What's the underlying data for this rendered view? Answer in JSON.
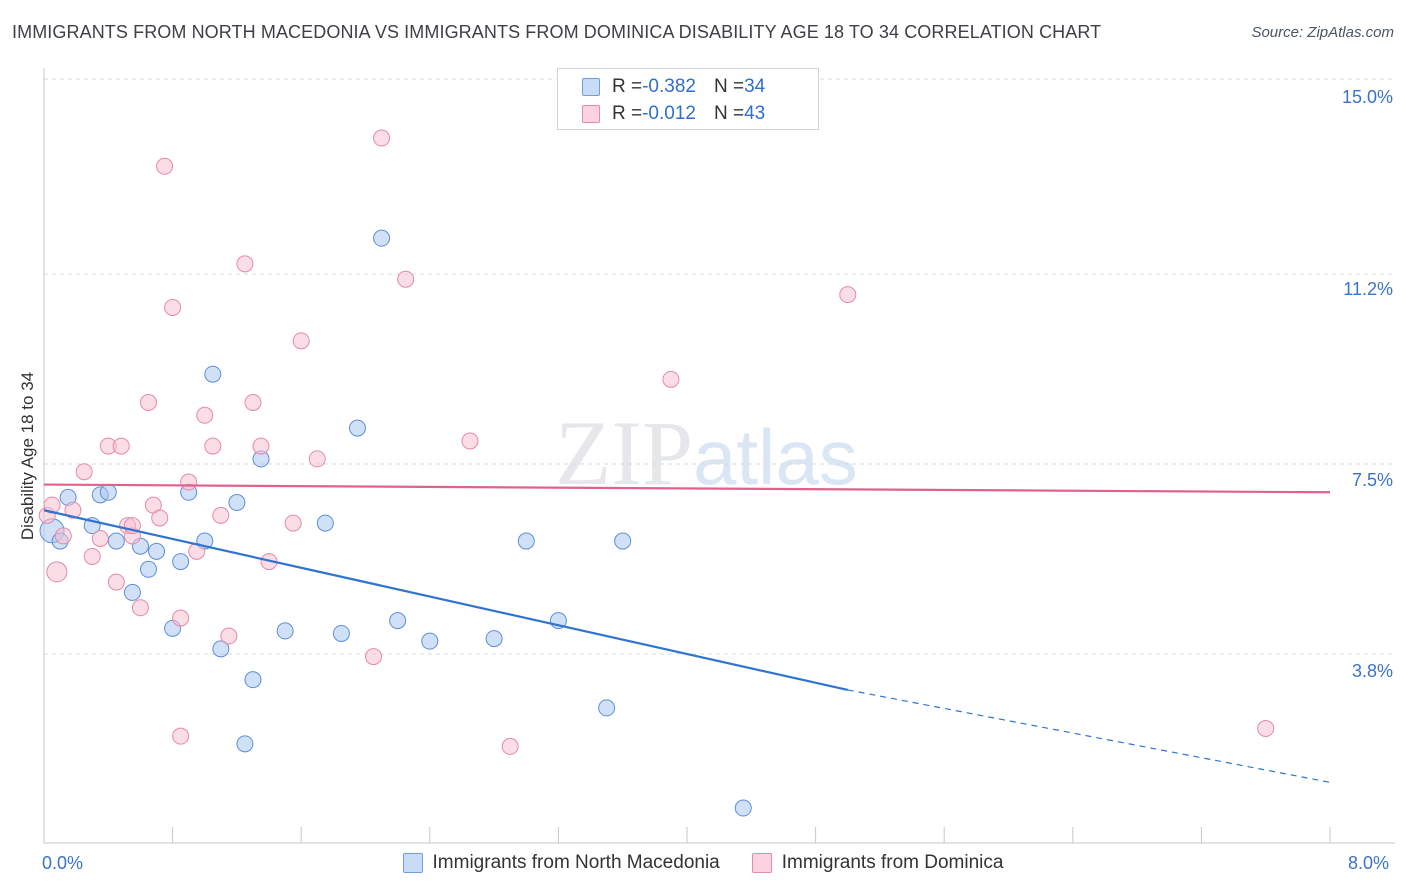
{
  "title": "IMMIGRANTS FROM NORTH MACEDONIA VS IMMIGRANTS FROM DOMINICA DISABILITY AGE 18 TO 34 CORRELATION CHART",
  "source": "Source: ZipAtlas.com",
  "watermark": {
    "zip": "ZIP",
    "atlas": "atlas"
  },
  "legend": {
    "rows": [
      {
        "r_label": "R = ",
        "r_value": "-0.382",
        "n_label": "N = ",
        "n_value": "34",
        "color": "#a9c7ee",
        "border": "#6fa0dc"
      },
      {
        "r_label": "R = ",
        "r_value": "-0.012",
        "n_label": "N = ",
        "n_value": "43",
        "color": "#f7c1d2",
        "border": "#e58aa7"
      }
    ]
  },
  "chart_data": {
    "type": "scatter",
    "title": "IMMIGRANTS FROM NORTH MACEDONIA VS IMMIGRANTS FROM DOMINICA DISABILITY AGE 18 TO 34 CORRELATION CHART",
    "xlabel": "",
    "ylabel": "Disability Age 18 to 34",
    "xlim": [
      0,
      8
    ],
    "ylim": [
      0.3,
      15.6
    ],
    "x_tick_labels": [
      "0.0%",
      "8.0%"
    ],
    "y_ticks": [
      3.8,
      7.5,
      11.2,
      15.0
    ],
    "y_tick_labels": [
      "3.8%",
      "7.5%",
      "11.2%",
      "15.0%"
    ],
    "grid": true,
    "series": [
      {
        "name": "Immigrants from North Macedonia",
        "color": "#a9c7ee",
        "edge": "#5d8fd6",
        "line_color": "#2f74d0",
        "trend": {
          "x0": 0.0,
          "y0": 6.6,
          "x1": 5.0,
          "y1": 3.1,
          "dash_to_x": 8.0,
          "dash_to_y": 1.3
        },
        "points": [
          [
            0.05,
            6.2
          ],
          [
            0.1,
            6.0
          ],
          [
            0.15,
            6.85
          ],
          [
            0.35,
            6.9
          ],
          [
            0.4,
            6.95
          ],
          [
            0.3,
            6.3
          ],
          [
            0.45,
            6.0
          ],
          [
            0.6,
            5.9
          ],
          [
            0.55,
            5.0
          ],
          [
            0.65,
            5.45
          ],
          [
            0.7,
            5.8
          ],
          [
            0.8,
            4.3
          ],
          [
            0.85,
            5.6
          ],
          [
            0.9,
            6.95
          ],
          [
            1.0,
            6.0
          ],
          [
            1.05,
            9.25
          ],
          [
            1.1,
            3.9
          ],
          [
            1.2,
            6.75
          ],
          [
            1.3,
            3.3
          ],
          [
            1.35,
            7.6
          ],
          [
            1.5,
            4.25
          ],
          [
            1.75,
            6.35
          ],
          [
            1.85,
            4.2
          ],
          [
            1.95,
            8.2
          ],
          [
            2.1,
            11.9
          ],
          [
            2.2,
            4.45
          ],
          [
            2.4,
            4.05
          ],
          [
            2.8,
            4.1
          ],
          [
            3.0,
            6.0
          ],
          [
            3.2,
            4.45
          ],
          [
            3.5,
            2.75
          ],
          [
            3.6,
            6.0
          ],
          [
            4.35,
            0.8
          ],
          [
            1.25,
            2.05
          ]
        ]
      },
      {
        "name": "Immigrants from Dominica",
        "color": "#f7c1d2",
        "edge": "#e58aa7",
        "line_color": "#e0628c",
        "trend": {
          "x0": 0.0,
          "y0": 7.1,
          "x1": 8.0,
          "y1": 6.95
        },
        "points": [
          [
            0.02,
            6.5
          ],
          [
            0.05,
            6.7
          ],
          [
            0.08,
            5.4
          ],
          [
            0.12,
            6.1
          ],
          [
            0.18,
            6.6
          ],
          [
            0.25,
            7.35
          ],
          [
            0.3,
            5.7
          ],
          [
            0.35,
            6.05
          ],
          [
            0.4,
            7.85
          ],
          [
            0.45,
            5.2
          ],
          [
            0.48,
            7.85
          ],
          [
            0.52,
            6.3
          ],
          [
            0.55,
            6.1
          ],
          [
            0.6,
            4.7
          ],
          [
            0.65,
            8.7
          ],
          [
            0.68,
            6.7
          ],
          [
            0.72,
            6.45
          ],
          [
            0.75,
            13.3
          ],
          [
            0.8,
            10.55
          ],
          [
            0.85,
            4.5
          ],
          [
            0.9,
            7.15
          ],
          [
            0.95,
            5.8
          ],
          [
            1.0,
            8.45
          ],
          [
            1.05,
            7.85
          ],
          [
            1.1,
            6.5
          ],
          [
            1.15,
            4.15
          ],
          [
            1.25,
            11.4
          ],
          [
            1.3,
            8.7
          ],
          [
            1.35,
            7.85
          ],
          [
            1.4,
            5.6
          ],
          [
            1.55,
            6.35
          ],
          [
            1.6,
            9.9
          ],
          [
            1.7,
            7.6
          ],
          [
            2.05,
            3.75
          ],
          [
            2.1,
            13.85
          ],
          [
            2.25,
            11.1
          ],
          [
            2.65,
            7.95
          ],
          [
            2.9,
            2.0
          ],
          [
            3.9,
            9.15
          ],
          [
            5.0,
            10.8
          ],
          [
            7.6,
            2.35
          ],
          [
            0.85,
            2.2
          ],
          [
            0.55,
            6.3
          ]
        ]
      }
    ]
  },
  "bottom_legend": [
    {
      "label": "Immigrants from North Macedonia",
      "color": "#a9c7ee",
      "border": "#6fa0dc"
    },
    {
      "label": "Immigrants from Dominica",
      "color": "#f7c1d2",
      "border": "#e58aa7"
    }
  ]
}
